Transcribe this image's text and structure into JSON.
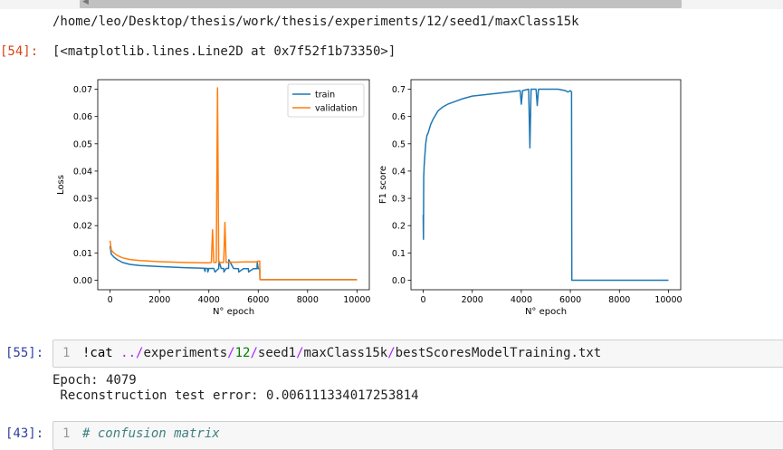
{
  "top_output_path": "/home/leo/Desktop/thesis/work/thesis/experiments/12/seed1/maxClass15k",
  "cells": [
    {
      "prompt": "[54]:",
      "output": "[<matplotlib.lines.Line2D at 0x7f52f1b73350>]"
    },
    {
      "prompt": "[55]:",
      "line_number": "1",
      "code": {
        "part1": "!cat ",
        "part2": "../",
        "part3": "experiments",
        "part4": "/",
        "part5": "12",
        "part6": "/",
        "part7": "seed1",
        "part8": "/",
        "part9": "maxClass15k",
        "part10": "/",
        "part11": "bestScoresModelTraining.txt"
      },
      "output_line1": "Epoch: 4079",
      "output_line2": " Reconstruction test error: 0.006111334017253814"
    },
    {
      "prompt": "[43]:",
      "line_number": "1",
      "code_comment": "# confusion matrix"
    }
  ],
  "colors": {
    "train": "#1f77b4",
    "validation": "#ff7f0e",
    "f1": "#1f77b4",
    "prompt_out": "#d84315",
    "prompt_in": "#303f9f"
  },
  "chart_data": [
    {
      "type": "line",
      "title": "",
      "xlabel": "N° epoch",
      "ylabel": "Loss",
      "xlim": [
        -500,
        10500
      ],
      "ylim": [
        -0.0035,
        0.0735
      ],
      "xticks": [
        0,
        2000,
        4000,
        6000,
        8000,
        10000
      ],
      "yticks": [
        0.0,
        0.01,
        0.02,
        0.03,
        0.04,
        0.05,
        0.06,
        0.07
      ],
      "ytick_labels": [
        "0.00",
        "0.01",
        "0.02",
        "0.03",
        "0.04",
        "0.05",
        "0.06",
        "0.07"
      ],
      "legend": "top-right",
      "series": [
        {
          "name": "train",
          "color": "#1f77b4",
          "x": [
            0,
            50,
            150,
            300,
            500,
            800,
            1200,
            2000,
            3000,
            3800,
            3850,
            3860,
            3900,
            3950,
            3960,
            4000,
            4200,
            4250,
            4400,
            4410,
            4500,
            4600,
            4610,
            4700,
            4800,
            4810,
            5000,
            5200,
            5210,
            5400,
            5600,
            5610,
            5800,
            5900,
            5950,
            5960,
            6000,
            6060,
            6070,
            8000,
            10000
          ],
          "values": [
            0.0125,
            0.0095,
            0.0085,
            0.0075,
            0.0065,
            0.0058,
            0.0054,
            0.005,
            0.0046,
            0.0044,
            0.0032,
            0.0044,
            0.0043,
            0.0043,
            0.003,
            0.0043,
            0.0043,
            0.003,
            0.0043,
            0.007,
            0.0043,
            0.0043,
            0.003,
            0.0043,
            0.0043,
            0.0075,
            0.0043,
            0.0042,
            0.003,
            0.0042,
            0.0042,
            0.003,
            0.0042,
            0.0042,
            0.0042,
            0.0065,
            0.0042,
            0.0042,
            0.0002,
            0.0002,
            0.0002
          ]
        },
        {
          "name": "validation",
          "color": "#ff7f0e",
          "x": [
            0,
            50,
            150,
            300,
            500,
            800,
            1200,
            2000,
            3000,
            3800,
            4000,
            4100,
            4150,
            4200,
            4300,
            4350,
            4400,
            4500,
            4600,
            4650,
            4700,
            4800,
            5000,
            5500,
            5900,
            6000,
            6060,
            6070,
            8000,
            10000
          ],
          "values": [
            0.0145,
            0.011,
            0.01,
            0.009,
            0.0082,
            0.0076,
            0.0072,
            0.0068,
            0.0065,
            0.0064,
            0.0064,
            0.0065,
            0.0185,
            0.0065,
            0.0065,
            0.0705,
            0.0065,
            0.0065,
            0.0065,
            0.0212,
            0.0065,
            0.0066,
            0.0066,
            0.0067,
            0.0067,
            0.007,
            0.007,
            0.0002,
            0.0002,
            0.0002
          ]
        }
      ]
    },
    {
      "type": "line",
      "title": "",
      "xlabel": "N° epoch",
      "ylabel": "F1 score",
      "xlim": [
        -500,
        10500
      ],
      "ylim": [
        -0.035,
        0.735
      ],
      "xticks": [
        0,
        2000,
        4000,
        6000,
        8000,
        10000
      ],
      "yticks": [
        0.0,
        0.1,
        0.2,
        0.3,
        0.4,
        0.5,
        0.6,
        0.7
      ],
      "ytick_labels": [
        "0.0",
        "0.1",
        "0.2",
        "0.3",
        "0.4",
        "0.5",
        "0.6",
        "0.7"
      ],
      "series": [
        {
          "name": "",
          "color": "#1f77b4",
          "x": [
            0,
            10,
            20,
            40,
            60,
            100,
            150,
            200,
            300,
            400,
            600,
            800,
            1000,
            1300,
            1600,
            2000,
            2500,
            3000,
            3500,
            3950,
            4000,
            4050,
            4300,
            4350,
            4400,
            4600,
            4650,
            4700,
            5000,
            5500,
            5800,
            5900,
            6000,
            6050,
            6060,
            8000,
            10000
          ],
          "values": [
            0.24,
            0.15,
            0.38,
            0.42,
            0.45,
            0.5,
            0.53,
            0.54,
            0.57,
            0.59,
            0.62,
            0.635,
            0.645,
            0.655,
            0.665,
            0.675,
            0.68,
            0.685,
            0.69,
            0.695,
            0.645,
            0.695,
            0.7,
            0.485,
            0.7,
            0.7,
            0.64,
            0.7,
            0.7,
            0.7,
            0.695,
            0.69,
            0.695,
            0.69,
            0.0,
            0.0,
            0.0
          ]
        }
      ]
    }
  ]
}
